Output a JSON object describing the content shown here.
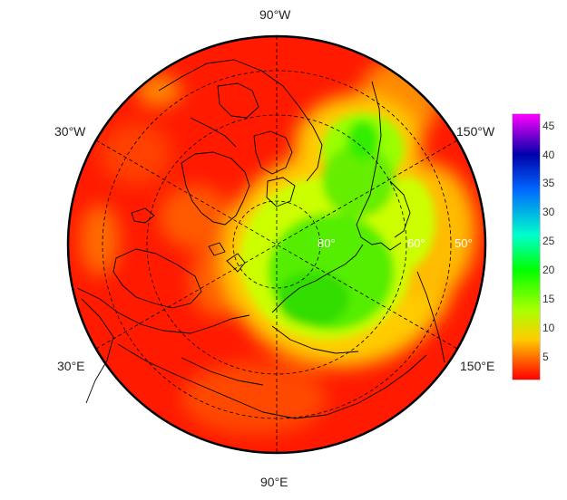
{
  "map": {
    "projection": "north-polar-stereographic",
    "lon_labels": {
      "top": "90°W",
      "upper_left": "30°W",
      "upper_right": "150°W",
      "lower_left": "30°E",
      "lower_right": "150°E",
      "bottom": "90°E"
    },
    "lat_labels": [
      "80°",
      "60°",
      "50°"
    ],
    "colors": {
      "land_outline": "#000000",
      "graticule": "#000000",
      "frame": "#000000",
      "lat_label": "#ffffff"
    }
  },
  "colorbar": {
    "ticks": [
      "45",
      "40",
      "35",
      "30",
      "25",
      "20",
      "15",
      "10",
      "5"
    ],
    "tick_values": [
      45,
      40,
      35,
      30,
      25,
      20,
      15,
      10,
      5
    ],
    "min": 1,
    "max": 47,
    "stops": [
      {
        "value": 1,
        "color": "#ff0000"
      },
      {
        "value": 8,
        "color": "#ffcc00"
      },
      {
        "value": 13,
        "color": "#aaff00"
      },
      {
        "value": 20,
        "color": "#00ff00"
      },
      {
        "value": 26,
        "color": "#00ffcc"
      },
      {
        "value": 34,
        "color": "#0066ff"
      },
      {
        "value": 40,
        "color": "#0000aa"
      },
      {
        "value": 47,
        "color": "#ff00ff"
      }
    ]
  }
}
